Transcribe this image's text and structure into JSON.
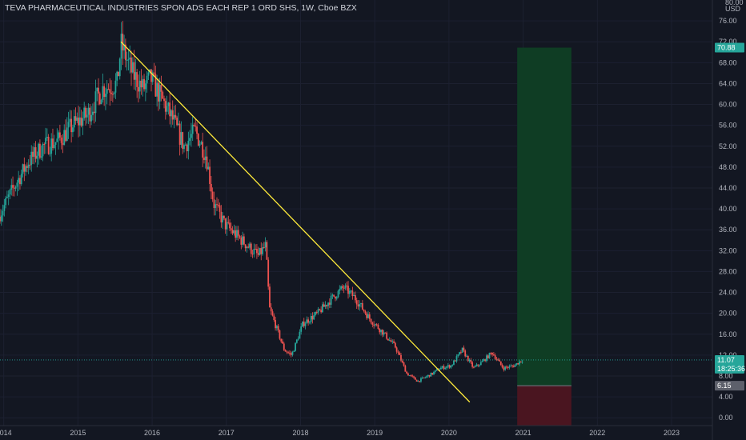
{
  "title": "TEVA PHARMACEUTICAL INDUSTRIES SPON ADS EACH REP 1 ORD SHS, 1W, Cboe BZX",
  "chart_data": {
    "type": "candlestick",
    "currency": "USD",
    "y_top_label": "80.00",
    "ylim": [
      -1.5,
      80
    ],
    "y_ticks": [
      "0.00",
      "4.00",
      "8.00",
      "12.00",
      "16.00",
      "20.00",
      "24.00",
      "28.00",
      "32.00",
      "36.00",
      "40.00",
      "44.00",
      "48.00",
      "52.00",
      "56.00",
      "60.00",
      "64.00",
      "68.00",
      "72.00",
      "76.00"
    ],
    "x_ticks": [
      {
        "label": "2014",
        "year": 2014.0
      },
      {
        "label": "2015",
        "year": 2015.0
      },
      {
        "label": "2016",
        "year": 2016.0
      },
      {
        "label": "2017",
        "year": 2017.0
      },
      {
        "label": "2018",
        "year": 2018.0
      },
      {
        "label": "2019",
        "year": 2019.0
      },
      {
        "label": "2020",
        "year": 2020.0
      },
      {
        "label": "2021",
        "year": 2021.0
      },
      {
        "label": "2022",
        "year": 2022.0
      },
      {
        "label": "2023",
        "year": 2023.0
      }
    ],
    "xlim": [
      2013.95,
      2023.55
    ],
    "price_path": [
      [
        2013.95,
        38.5
      ],
      [
        2014.15,
        44
      ],
      [
        2014.35,
        49
      ],
      [
        2014.55,
        52
      ],
      [
        2014.75,
        53
      ],
      [
        2014.95,
        56
      ],
      [
        2015.15,
        58
      ],
      [
        2015.35,
        63
      ],
      [
        2015.55,
        64
      ],
      [
        2015.6,
        71.5
      ],
      [
        2015.75,
        66
      ],
      [
        2015.9,
        63
      ],
      [
        2016.0,
        65
      ],
      [
        2016.15,
        61
      ],
      [
        2016.3,
        57
      ],
      [
        2016.45,
        52
      ],
      [
        2016.6,
        55
      ],
      [
        2016.75,
        50
      ],
      [
        2016.85,
        41
      ],
      [
        2017.0,
        37
      ],
      [
        2017.15,
        35
      ],
      [
        2017.3,
        33
      ],
      [
        2017.45,
        31
      ],
      [
        2017.55,
        33
      ],
      [
        2017.6,
        21
      ],
      [
        2017.8,
        13
      ],
      [
        2017.9,
        12
      ],
      [
        2018.05,
        18
      ],
      [
        2018.25,
        20
      ],
      [
        2018.45,
        23
      ],
      [
        2018.6,
        25
      ],
      [
        2018.75,
        23
      ],
      [
        2018.95,
        19
      ],
      [
        2019.15,
        16
      ],
      [
        2019.3,
        13.5
      ],
      [
        2019.45,
        8.5
      ],
      [
        2019.6,
        7
      ],
      [
        2019.8,
        8.5
      ],
      [
        2019.9,
        9.5
      ],
      [
        2020.05,
        10
      ],
      [
        2020.2,
        13
      ],
      [
        2020.35,
        9.5
      ],
      [
        2020.45,
        10.5
      ],
      [
        2020.6,
        12.5
      ],
      [
        2020.75,
        9.5
      ],
      [
        2020.9,
        10
      ],
      [
        2021.0,
        11.07
      ]
    ],
    "trendline": {
      "from": [
        2015.58,
        72
      ],
      "to": [
        2020.28,
        3
      ],
      "color": "#ffeb3b"
    },
    "position": {
      "x_start": 2020.92,
      "x_end": 2021.65,
      "entry": 6.15,
      "target": 70.88,
      "stop": -1.5,
      "profit_color": "#0f3d24",
      "loss_color": "#4a1520"
    },
    "tags": [
      {
        "label": "70.88",
        "value": 70.88,
        "color": "#26a69a"
      },
      {
        "label": "11.07",
        "value": 11.07,
        "color": "#26a69a"
      },
      {
        "label": "18:25:36",
        "value": 9.4,
        "color": "#26a69a"
      },
      {
        "label": "6.15",
        "value": 6.15,
        "color": "#5d606b"
      }
    ],
    "up_color": "#26a69a",
    "down_color": "#ef5350",
    "last_price_line": 11.07
  }
}
